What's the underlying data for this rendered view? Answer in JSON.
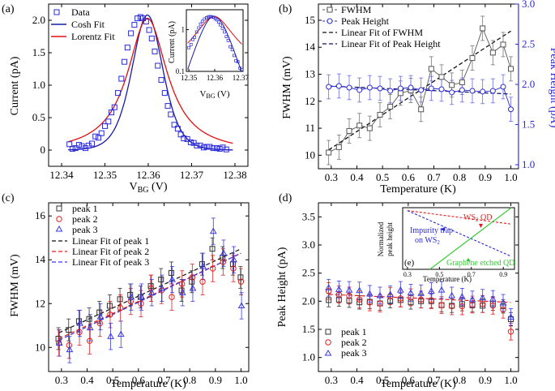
{
  "chart_data": [
    {
      "panel": "(a)",
      "type": "scatter",
      "xlabel": "V",
      "xlabel_sub": "BG",
      "xlabel_unit": " (V)",
      "ylabel": "Current (pA)",
      "xlim": [
        12.337,
        12.383
      ],
      "ylim": [
        -0.25,
        2.25
      ],
      "xticks": [
        "12.34",
        "12.35",
        "12.36",
        "12.37",
        "12.38"
      ],
      "yticks": [
        "0",
        "0.5",
        "1.0",
        "1.5",
        "2.0"
      ],
      "legend": [
        "Data",
        "Cosh Fit",
        "Lorentz Fit"
      ],
      "colors": {
        "data": "#2a2ad0",
        "cosh": "#1a1aa8",
        "lorentz": "#e01010"
      },
      "data": {
        "x": [
          12.3418,
          12.3425,
          12.3432,
          12.344,
          12.3447,
          12.3455,
          12.3462,
          12.347,
          12.3478,
          12.3485,
          12.3492,
          12.35,
          12.3508,
          12.3515,
          12.3522,
          12.353,
          12.3538,
          12.3545,
          12.3552,
          12.356,
          12.3568,
          12.3575,
          12.3582,
          12.3588,
          12.3595,
          12.3602,
          12.3608,
          12.3615,
          12.3622,
          12.363,
          12.3638,
          12.3645,
          12.3652,
          12.366,
          12.3668,
          12.3675,
          12.3682,
          12.369,
          12.3698,
          12.3705,
          12.3712,
          12.372,
          12.3728,
          12.3735,
          12.3742,
          12.375,
          12.3758,
          12.3765,
          12.3772,
          12.378
        ],
        "y": [
          0.09,
          0.02,
          0.03,
          0.08,
          0.06,
          0.03,
          0.07,
          0.1,
          0.21,
          0.19,
          0.26,
          0.37,
          0.44,
          0.58,
          0.66,
          0.88,
          1.1,
          1.36,
          1.58,
          1.8,
          1.93,
          2.03,
          2.05,
          2.03,
          1.98,
          1.85,
          1.72,
          1.52,
          1.3,
          1.08,
          0.88,
          0.68,
          0.55,
          0.39,
          0.33,
          0.24,
          0.18,
          0.17,
          0.12,
          0.11,
          0.07,
          0.07,
          0.04,
          0.05,
          0.05,
          0.03,
          0.03,
          0.02,
          0.04,
          0.01
        ]
      },
      "fit_params": {
        "center": 12.3598,
        "amplitude": 2.08,
        "cosh_width": 0.0048,
        "lorentz_gamma": 0.0056
      },
      "inset": {
        "type": "line",
        "yscale": "log",
        "xlabel": "V",
        "xlabel_sub": "BG",
        "xlabel_unit": " (V)",
        "ylabel": "Current (pA)",
        "xlim": [
          12.349,
          12.371
        ],
        "ylim": [
          0.1,
          3
        ],
        "xticks": [
          "12.35",
          "12.36",
          "12.37"
        ],
        "yticks": [
          "0.1",
          "1"
        ]
      }
    },
    {
      "panel": "(b)",
      "type": "line",
      "xlabel": "Temperature (K)",
      "ylabel": "FWHM (mV)",
      "ylabel_right": "Peak Height (pA)",
      "xlim": [
        0.25,
        1.03
      ],
      "ylim": [
        9.5,
        15.6
      ],
      "ylim_right": [
        0.95,
        3.0
      ],
      "xticks": [
        "0.3",
        "0.4",
        "0.5",
        "0.6",
        "0.7",
        "0.8",
        "0.9",
        "1.0"
      ],
      "yticks": [
        "10",
        "11",
        "12",
        "13",
        "14",
        "15"
      ],
      "yticks_right": [
        "1.0",
        "1.5",
        "2.0",
        "2.5",
        "3.0"
      ],
      "legend": [
        "FWHM",
        "Peak Height",
        "Linear Fit of FWHM",
        "Linear Fit of Peak Height"
      ],
      "colors": {
        "fwhm": "#555555",
        "height": "#2a2ad0",
        "fit_fwhm": "#111111",
        "fit_height": "#111166"
      },
      "x": [
        0.29,
        0.33,
        0.37,
        0.41,
        0.45,
        0.49,
        0.53,
        0.57,
        0.61,
        0.65,
        0.69,
        0.73,
        0.77,
        0.81,
        0.85,
        0.89,
        0.93,
        0.97,
        1.0
      ],
      "fwhm": [
        10.1,
        10.3,
        10.9,
        11.1,
        11.0,
        11.5,
        11.8,
        12.3,
        12.4,
        11.7,
        13.2,
        12.9,
        12.6,
        12.7,
        13.6,
        14.7,
        13.8,
        14.1,
        13.2
      ],
      "fwhm_err": 0.45,
      "peak_height": [
        1.97,
        1.98,
        1.96,
        1.93,
        1.96,
        1.95,
        1.92,
        1.95,
        1.96,
        1.93,
        1.95,
        1.94,
        1.9,
        1.93,
        1.92,
        1.91,
        1.92,
        1.97,
        1.69
      ],
      "peak_height_err": 0.15,
      "fit_fwhm": {
        "slope": 6.2,
        "intercept": 8.4
      },
      "fit_peak_height": {
        "slope": -0.14,
        "intercept": 2.02
      }
    },
    {
      "panel": "(c)",
      "type": "scatter",
      "xlabel": "Temperature (K)",
      "ylabel": "FWHM (mV)",
      "xlim": [
        0.25,
        1.03
      ],
      "ylim": [
        8.9,
        16.6
      ],
      "xticks": [
        "0.3",
        "0.4",
        "0.5",
        "0.6",
        "0.7",
        "0.8",
        "0.9",
        "1.0"
      ],
      "yticks": [
        "10",
        "12",
        "14",
        "16"
      ],
      "legend": [
        "peak 1",
        "peak 2",
        "peak 3",
        "Linear Fit of peak 1",
        "Linear Fit of peak 2",
        "Linear Fit of peak 3"
      ],
      "x": [
        0.29,
        0.33,
        0.37,
        0.41,
        0.45,
        0.49,
        0.53,
        0.57,
        0.61,
        0.65,
        0.69,
        0.73,
        0.77,
        0.81,
        0.85,
        0.89,
        0.93,
        0.97,
        1.0
      ],
      "series": [
        {
          "name": "peak 1",
          "color": "#333333",
          "marker": "square",
          "values": [
            10.4,
            10.8,
            11.2,
            11.3,
            11.6,
            11.9,
            12.2,
            12.4,
            12.3,
            12.8,
            13.1,
            13.4,
            12.6,
            13.0,
            13.8,
            14.5,
            14.1,
            13.8,
            13.2
          ],
          "err": 0.5,
          "fit": {
            "slope": 5.4,
            "intercept": 9.1
          }
        },
        {
          "name": "peak 2",
          "color": "#e02020",
          "marker": "circle",
          "values": [
            10.2,
            10.1,
            10.7,
            10.3,
            11.1,
            11.5,
            11.8,
            12.1,
            12.0,
            12.7,
            12.6,
            12.3,
            12.9,
            13.2,
            13.0,
            13.6,
            13.9,
            13.6,
            13.0
          ],
          "err": 0.6,
          "fit": {
            "slope": 5.5,
            "intercept": 8.8
          }
        },
        {
          "name": "peak 3",
          "color": "#3a3ae0",
          "marker": "triangle",
          "values": [
            10.2,
            9.9,
            11.1,
            10.9,
            11.4,
            10.5,
            10.6,
            12.3,
            12.3,
            12.5,
            12.7,
            13.1,
            12.5,
            12.7,
            13.7,
            15.3,
            14.3,
            14.0,
            11.9
          ],
          "err": 0.6,
          "fit": {
            "slope": 5.6,
            "intercept": 8.7
          }
        }
      ]
    },
    {
      "panel": "(d)",
      "type": "scatter",
      "xlabel": "Temperature (K)",
      "ylabel": "Peak Height (pA)",
      "xlim": [
        0.25,
        1.03
      ],
      "ylim": [
        0.75,
        3.75
      ],
      "xticks": [
        "0.3",
        "0.4",
        "0.5",
        "0.6",
        "0.7",
        "0.8",
        "0.9",
        "1.0"
      ],
      "yticks": [
        "1.0",
        "1.5",
        "2.0",
        "2.5",
        "3.0",
        "3.5"
      ],
      "legend": [
        "peak 1",
        "peak 2",
        "peak 3"
      ],
      "x": [
        0.29,
        0.33,
        0.37,
        0.41,
        0.45,
        0.49,
        0.53,
        0.57,
        0.61,
        0.65,
        0.69,
        0.73,
        0.77,
        0.81,
        0.85,
        0.89,
        0.93,
        0.97,
        1.0
      ],
      "series": [
        {
          "name": "peak 1",
          "color": "#333333",
          "marker": "square",
          "values": [
            2.02,
            2.03,
            2.01,
            1.98,
            1.99,
            1.96,
            2.0,
            2.02,
            1.98,
            2.0,
            2.0,
            1.93,
            1.92,
            1.95,
            1.93,
            1.92,
            1.96,
            1.91,
            1.68
          ],
          "err": 0.12
        },
        {
          "name": "peak 2",
          "color": "#e02020",
          "marker": "circle",
          "values": [
            2.18,
            2.12,
            2.1,
            2.03,
            1.98,
            1.96,
            2.09,
            2.05,
            2.07,
            2.03,
            2.02,
            1.93,
            1.91,
            1.91,
            1.94,
            1.95,
            1.92,
            1.85,
            1.46
          ],
          "err": 0.15
        },
        {
          "name": "peak 3",
          "color": "#3a3ae0",
          "marker": "triangle",
          "values": [
            2.24,
            2.21,
            2.2,
            2.19,
            2.13,
            2.1,
            2.12,
            2.2,
            2.15,
            2.14,
            2.18,
            2.2,
            2.1,
            2.08,
            2.03,
            2.06,
            2.04,
            1.97,
            1.72
          ],
          "err": 0.15
        }
      ],
      "fit": {
        "slope": -0.2,
        "intercept": 2.18,
        "color": "#e02020"
      },
      "inset": {
        "type": "line",
        "xlabel": "Temperature (K)",
        "ylabel_line1": "Normalized",
        "ylabel_line2": "peak height",
        "label": "(e)",
        "xlim": [
          0.27,
          0.97
        ],
        "ylim": [
          0,
          1.05
        ],
        "xticks": [
          "0.3",
          "0.5",
          "0.7",
          "0.9"
        ],
        "lines": [
          {
            "name": "WS2 QD",
            "label": "WS",
            "label_sub": "2",
            "label_tail": " QD",
            "color": "#e02020",
            "x": [
              0.3,
              0.95
            ],
            "y": [
              1.0,
              0.77
            ]
          },
          {
            "name": "Impurity trap on WS2",
            "label_line1": "Impurity trap",
            "label_line2": "on WS",
            "label_sub": "2",
            "color": "#2a2ad0",
            "x": [
              0.3,
              0.95
            ],
            "y": [
              1.0,
              0.22
            ]
          },
          {
            "name": "Graphene etched QD",
            "label": "Graphene etched QD",
            "color": "#33cc33",
            "x": [
              0.44,
              0.95
            ],
            "y": [
              0.0,
              1.05
            ]
          }
        ]
      }
    }
  ]
}
